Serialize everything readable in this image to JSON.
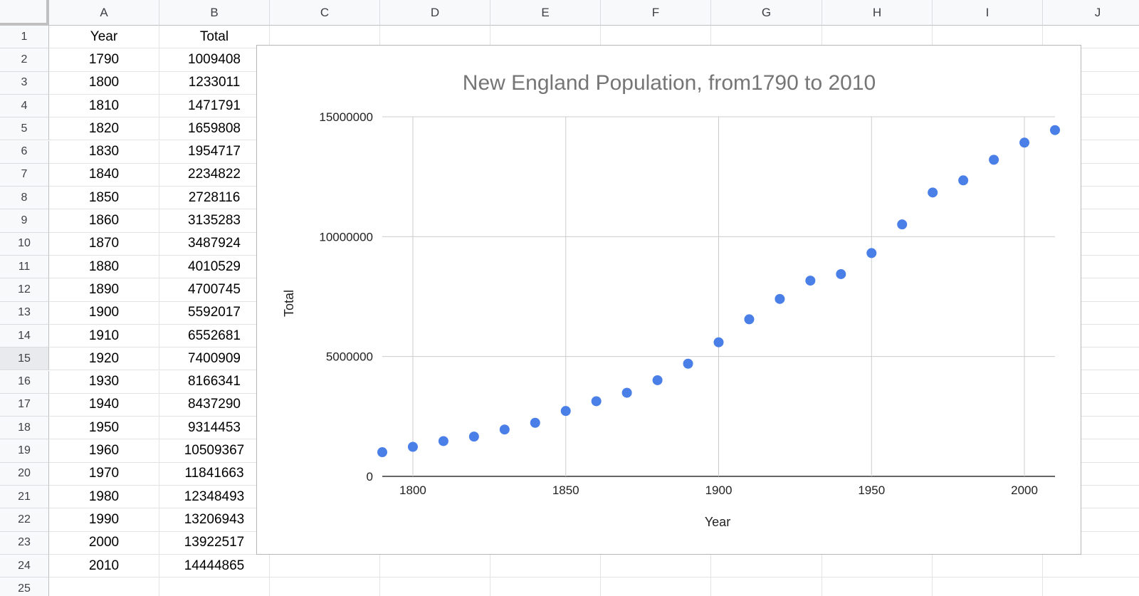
{
  "columns": [
    "A",
    "B",
    "C",
    "D",
    "E",
    "F",
    "G",
    "H",
    "I",
    "J"
  ],
  "rows": [
    "1",
    "2",
    "3",
    "4",
    "5",
    "6",
    "7",
    "8",
    "9",
    "10",
    "11",
    "12",
    "13",
    "14",
    "15",
    "16",
    "17",
    "18",
    "19",
    "20",
    "21",
    "22",
    "23",
    "24",
    "25"
  ],
  "active_row": "15",
  "headers": {
    "year": "Year",
    "total": "Total"
  },
  "data_rows": [
    {
      "year": "1790",
      "total": "1009408"
    },
    {
      "year": "1800",
      "total": "1233011"
    },
    {
      "year": "1810",
      "total": "1471791"
    },
    {
      "year": "1820",
      "total": "1659808"
    },
    {
      "year": "1830",
      "total": "1954717"
    },
    {
      "year": "1840",
      "total": "2234822"
    },
    {
      "year": "1850",
      "total": "2728116"
    },
    {
      "year": "1860",
      "total": "3135283"
    },
    {
      "year": "1870",
      "total": "3487924"
    },
    {
      "year": "1880",
      "total": "4010529"
    },
    {
      "year": "1890",
      "total": "4700745"
    },
    {
      "year": "1900",
      "total": "5592017"
    },
    {
      "year": "1910",
      "total": "6552681"
    },
    {
      "year": "1920",
      "total": "7400909"
    },
    {
      "year": "1930",
      "total": "8166341"
    },
    {
      "year": "1940",
      "total": "8437290"
    },
    {
      "year": "1950",
      "total": "9314453"
    },
    {
      "year": "1960",
      "total": "10509367"
    },
    {
      "year": "1970",
      "total": "11841663"
    },
    {
      "year": "1980",
      "total": "12348493"
    },
    {
      "year": "1990",
      "total": "13206943"
    },
    {
      "year": "2000",
      "total": "13922517"
    },
    {
      "year": "2010",
      "total": "14444865"
    }
  ],
  "colors": {
    "point": "#4a7fe8",
    "title": "#757575",
    "grid": "#cccccc",
    "axis": "#333333"
  },
  "chart_data": {
    "type": "scatter",
    "title": "New England Population, from1790 to 2010",
    "xlabel": "Year",
    "ylabel": "Total",
    "xlim": [
      1790,
      2010
    ],
    "ylim": [
      0,
      15000000
    ],
    "xticks": [
      1800,
      1850,
      1900,
      1950,
      2000
    ],
    "yticks": [
      0,
      5000000,
      10000000,
      15000000
    ],
    "grid": true,
    "x": [
      1790,
      1800,
      1810,
      1820,
      1830,
      1840,
      1850,
      1860,
      1870,
      1880,
      1890,
      1900,
      1910,
      1920,
      1930,
      1940,
      1950,
      1960,
      1970,
      1980,
      1990,
      2000,
      2010
    ],
    "y": [
      1009408,
      1233011,
      1471791,
      1659808,
      1954717,
      2234822,
      2728116,
      3135283,
      3487924,
      4010529,
      4700745,
      5592017,
      6552681,
      7400909,
      8166341,
      8437290,
      9314453,
      10509367,
      11841663,
      12348493,
      13206943,
      13922517,
      14444865
    ]
  }
}
